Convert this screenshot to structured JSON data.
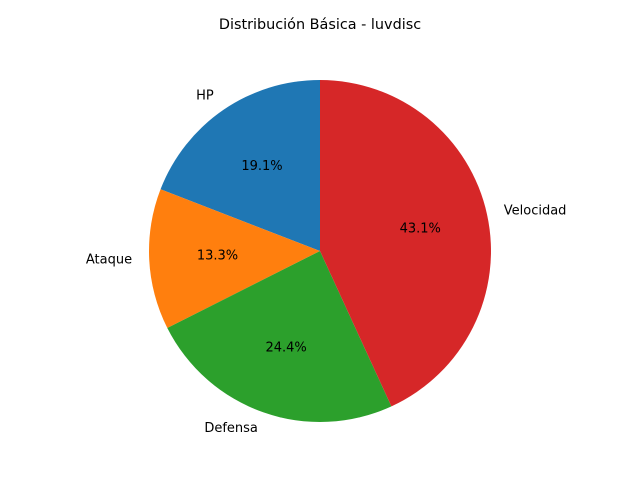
{
  "chart_data": {
    "type": "pie",
    "title": "Distribución Básica - luvdisc",
    "categories": [
      "HP",
      "Ataque",
      "Defensa",
      "Velocidad"
    ],
    "values": [
      19.1,
      13.3,
      24.4,
      43.1
    ],
    "percent_labels": [
      "19.1%",
      "13.3%",
      "24.4%",
      "43.1%"
    ],
    "colors": [
      "#1f77b4",
      "#ff7f0e",
      "#2ca02c",
      "#d62728"
    ],
    "start_angle_deg": 90,
    "direction": "counterclockwise",
    "legend": "none"
  }
}
